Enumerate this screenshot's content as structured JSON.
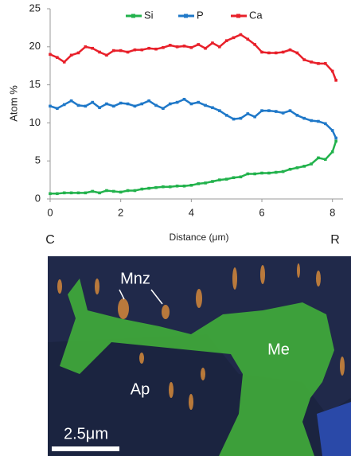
{
  "chart_data": {
    "type": "line",
    "ylabel": "Atom %",
    "xlabel": "Distance (μm)",
    "annotations": [
      "C",
      "R"
    ],
    "x": [
      0,
      0.2,
      0.4,
      0.6,
      0.8,
      1.0,
      1.2,
      1.4,
      1.6,
      1.8,
      2.0,
      2.2,
      2.4,
      2.6,
      2.8,
      3.0,
      3.2,
      3.4,
      3.6,
      3.8,
      4.0,
      4.2,
      4.4,
      4.6,
      4.8,
      5.0,
      5.2,
      5.4,
      5.6,
      5.8,
      6.0,
      6.2,
      6.4,
      6.6,
      6.8,
      7.0,
      7.2,
      7.4,
      7.6,
      7.8,
      8.0,
      8.1
    ],
    "series": [
      {
        "name": "Si",
        "color": "#22b24c",
        "values": [
          0.7,
          0.7,
          0.8,
          0.8,
          0.8,
          0.8,
          1.0,
          0.8,
          1.1,
          1.0,
          0.9,
          1.1,
          1.1,
          1.3,
          1.4,
          1.5,
          1.6,
          1.6,
          1.7,
          1.7,
          1.8,
          2.0,
          2.1,
          2.3,
          2.5,
          2.6,
          2.8,
          2.9,
          3.3,
          3.3,
          3.4,
          3.4,
          3.5,
          3.6,
          3.9,
          4.1,
          4.3,
          4.6,
          5.4,
          5.2,
          6.2,
          7.6
        ]
      },
      {
        "name": "P",
        "color": "#1f78c8",
        "values": [
          12.2,
          11.9,
          12.4,
          12.9,
          12.3,
          12.2,
          12.7,
          12.0,
          12.5,
          12.2,
          12.6,
          12.5,
          12.2,
          12.5,
          12.9,
          12.3,
          11.9,
          12.5,
          12.7,
          13.1,
          12.5,
          12.7,
          12.3,
          12.0,
          11.6,
          11.0,
          10.5,
          10.6,
          11.2,
          10.8,
          11.6,
          11.6,
          11.5,
          11.3,
          11.6,
          11.0,
          10.6,
          10.3,
          10.2,
          9.9,
          9.0,
          8.0
        ]
      },
      {
        "name": "Ca",
        "color": "#e8202a",
        "values": [
          19.0,
          18.6,
          18.0,
          18.9,
          19.2,
          20.0,
          19.8,
          19.3,
          18.9,
          19.5,
          19.5,
          19.3,
          19.6,
          19.6,
          19.8,
          19.7,
          19.9,
          20.2,
          20.0,
          20.1,
          19.9,
          20.3,
          19.8,
          20.5,
          20.0,
          20.8,
          21.2,
          21.6,
          21.0,
          20.3,
          19.3,
          19.2,
          19.2,
          19.3,
          19.6,
          19.2,
          18.3,
          18.0,
          17.8,
          17.8,
          16.8,
          15.6
        ]
      }
    ],
    "xlim": [
      0,
      8.3
    ],
    "xticks": [
      0,
      2,
      4,
      6,
      8
    ],
    "ylim": [
      0,
      25
    ],
    "yticks": [
      0,
      5,
      10,
      15,
      20,
      25
    ],
    "grid": false,
    "legend": "top"
  },
  "image": {
    "labels": [
      "Mnz",
      "Me",
      "Ap",
      "2.5μm"
    ]
  }
}
